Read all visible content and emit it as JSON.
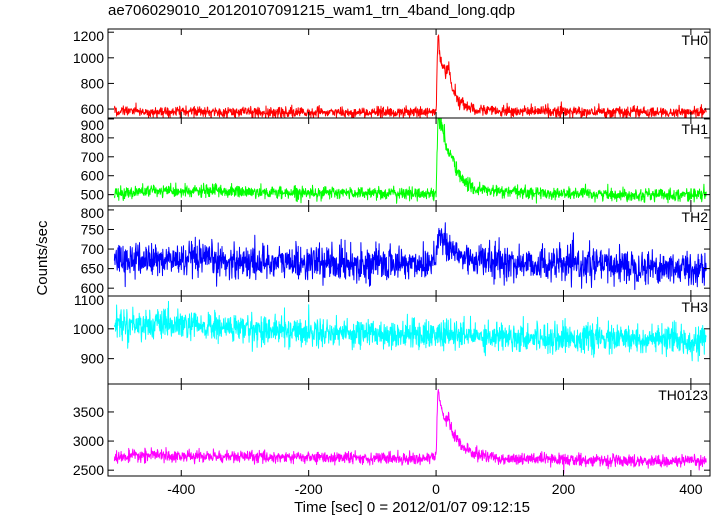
{
  "chart_data": {
    "type": "line",
    "title": "ae706029010_20120107091215_wam1_trn_4band_long.qdp",
    "xlabel": "Time [sec] 0 = 2012/01/07 09:12:15",
    "ylabel": "Counts/sec",
    "xlim": [
      -515,
      430
    ],
    "xticks": [
      -400,
      -200,
      0,
      200,
      400
    ],
    "grid": false,
    "panels": [
      {
        "name": "TH0",
        "color": "#ff0000",
        "ylim": [
          530,
          1225
        ],
        "yticks": [
          600,
          800,
          1000,
          1200
        ],
        "baseline": 575,
        "noise": 22,
        "sigma": 0.9,
        "skip": 0,
        "x": [
          -510,
          -480,
          -450,
          -400,
          -350,
          -300,
          -250,
          -200,
          -150,
          -100,
          -50,
          -10,
          0,
          3,
          6,
          10,
          15,
          20,
          25,
          30,
          40,
          60,
          100,
          200,
          300,
          400,
          420
        ],
        "y": [
          575,
          590,
          570,
          580,
          575,
          578,
          572,
          575,
          570,
          575,
          572,
          575,
          590,
          1200,
          1000,
          950,
          880,
          930,
          760,
          720,
          640,
          600,
          585,
          580,
          575,
          570,
          575
        ]
      },
      {
        "name": "TH1",
        "color": "#00ff00",
        "ylim": [
          440,
          905
        ],
        "yticks": [
          500,
          600,
          700,
          800,
          900
        ],
        "baseline": 510,
        "noise": 18,
        "sigma": 0.9,
        "skip": 0,
        "x": [
          -510,
          -450,
          -400,
          -350,
          -300,
          -250,
          -200,
          -150,
          -100,
          -50,
          -10,
          0,
          3,
          6,
          10,
          15,
          20,
          25,
          30,
          40,
          60,
          100,
          200,
          300,
          400,
          420
        ],
        "y": [
          505,
          520,
          515,
          520,
          515,
          510,
          512,
          508,
          510,
          505,
          505,
          510,
          900,
          880,
          860,
          760,
          720,
          700,
          650,
          580,
          530,
          515,
          505,
          500,
          500,
          500
        ]
      },
      {
        "name": "TH2",
        "color": "#0000ff",
        "ylim": [
          580,
          810
        ],
        "yticks": [
          600,
          650,
          700,
          750,
          800
        ],
        "baseline": 668,
        "noise": 36,
        "sigma": 0.6,
        "skip": 0,
        "x": [
          -510,
          -400,
          -300,
          -200,
          -100,
          -10,
          0,
          5,
          10,
          20,
          40,
          100,
          200,
          300,
          400,
          420
        ],
        "y": [
          672,
          672,
          668,
          665,
          662,
          664,
          690,
          745,
          720,
          700,
          680,
          665,
          660,
          658,
          650,
          650
        ]
      },
      {
        "name": "TH3",
        "color": "#00ffff",
        "ylim": [
          815,
          1110
        ],
        "yticks": [
          900,
          1000,
          1100
        ],
        "baseline": 990,
        "noise": 48,
        "sigma": 0.5,
        "skip": 1,
        "x": [
          -510,
          -400,
          -300,
          -200,
          -100,
          0,
          100,
          200,
          300,
          400,
          420
        ],
        "y": [
          1020,
          1010,
          1000,
          990,
          985,
          980,
          975,
          970,
          965,
          960,
          960
        ]
      },
      {
        "name": "TH0123",
        "color": "#ff00ff",
        "ylim": [
          2400,
          3980
        ],
        "yticks": [
          2500,
          3000,
          3500
        ],
        "baseline": 2700,
        "noise": 55,
        "sigma": 0.9,
        "skip": 0,
        "x": [
          -510,
          -450,
          -400,
          -300,
          -200,
          -100,
          -50,
          -10,
          0,
          3,
          6,
          10,
          15,
          20,
          25,
          30,
          40,
          60,
          100,
          200,
          300,
          400,
          420
        ],
        "y": [
          2710,
          2760,
          2740,
          2730,
          2720,
          2710,
          2700,
          2700,
          2750,
          3850,
          3700,
          3500,
          3350,
          3400,
          3150,
          3100,
          2900,
          2780,
          2700,
          2680,
          2660,
          2650,
          2650
        ]
      }
    ]
  }
}
